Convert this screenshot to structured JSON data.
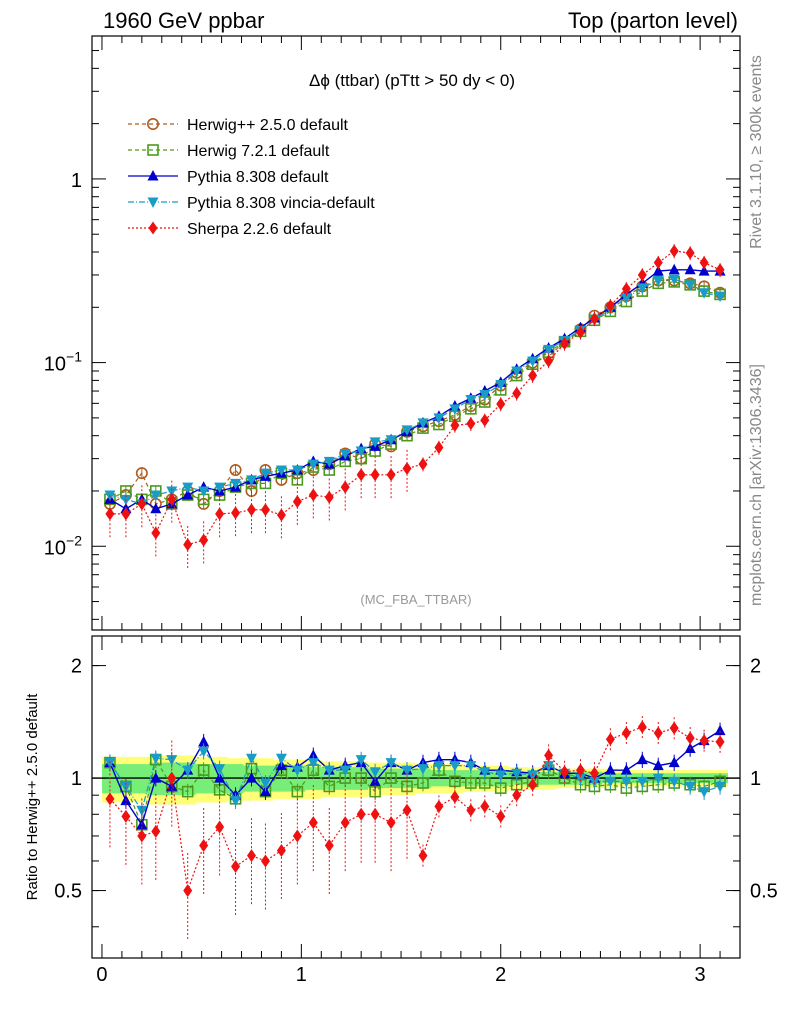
{
  "header": {
    "left": "1960 GeV ppbar",
    "right": "Top (parton level)"
  },
  "side_labels": {
    "rivet": "Rivet 3.1.10, ≥ 300k events",
    "mcplots": "mcplots.cern.ch [arXiv:1306.3436]"
  },
  "colors": {
    "herwigpp": "#b05a1e",
    "herwig7": "#4c9a1d",
    "pythia": "#0000cc",
    "vincia": "#1a9cc8",
    "sherpa": "#ee1111",
    "band_outer": "#ffff77",
    "band_inner": "#77ee77"
  },
  "chart_data": [
    {
      "type": "line",
      "title": "Δϕ (ttbar) (pTtt > 50 dy < 0)",
      "watermark": "(MC_FBA_TTBAR)",
      "xlabel": "",
      "ylabel": "",
      "xlim": [
        -0.05,
        3.2
      ],
      "ylim": [
        0.0035,
        6.0
      ],
      "yscale": "log",
      "ytick_labels": [
        {
          "value": 1,
          "label": "1",
          "exp": ""
        },
        {
          "value": 0.1,
          "label": "10",
          "exp": "−1"
        },
        {
          "value": 0.01,
          "label": "10",
          "exp": "−2"
        }
      ],
      "legend_position": "top-left",
      "x": [
        0.04,
        0.12,
        0.2,
        0.27,
        0.35,
        0.43,
        0.51,
        0.59,
        0.67,
        0.75,
        0.82,
        0.9,
        0.98,
        1.06,
        1.14,
        1.22,
        1.3,
        1.37,
        1.45,
        1.53,
        1.61,
        1.69,
        1.77,
        1.85,
        1.92,
        2.0,
        2.08,
        2.16,
        2.24,
        2.32,
        2.4,
        2.47,
        2.55,
        2.63,
        2.71,
        2.79,
        2.87,
        2.95,
        3.02,
        3.1
      ],
      "series": [
        {
          "name": "Herwig++ 2.5.0 default",
          "key": "herwigpp",
          "marker": "circle-open",
          "dash": "4,3",
          "values": [
            0.017,
            0.019,
            0.025,
            0.017,
            0.018,
            0.02,
            0.017,
            0.02,
            0.026,
            0.02,
            0.026,
            0.023,
            0.025,
            0.026,
            0.028,
            0.032,
            0.03,
            0.036,
            0.035,
            0.042,
            0.045,
            0.048,
            0.052,
            0.058,
            0.063,
            0.075,
            0.088,
            0.1,
            0.108,
            0.13,
            0.152,
            0.18,
            0.2,
            0.23,
            0.26,
            0.28,
            0.28,
            0.27,
            0.26,
            0.24
          ]
        },
        {
          "name": "Herwig 7.2.1 default",
          "key": "herwig7",
          "marker": "square-open",
          "dash": "4,3",
          "values": [
            0.018,
            0.02,
            0.018,
            0.02,
            0.017,
            0.019,
            0.018,
            0.019,
            0.021,
            0.022,
            0.022,
            0.025,
            0.023,
            0.027,
            0.026,
            0.029,
            0.03,
            0.033,
            0.036,
            0.04,
            0.044,
            0.046,
            0.051,
            0.056,
            0.061,
            0.071,
            0.085,
            0.098,
            0.114,
            0.13,
            0.148,
            0.17,
            0.19,
            0.215,
            0.245,
            0.27,
            0.275,
            0.265,
            0.245,
            0.235
          ]
        },
        {
          "name": "Pythia 8.308 default",
          "key": "pythia",
          "marker": "triangle-up",
          "dash": "",
          "values": [
            0.018,
            0.016,
            0.018,
            0.016,
            0.017,
            0.019,
            0.021,
            0.02,
            0.021,
            0.023,
            0.024,
            0.025,
            0.026,
            0.029,
            0.028,
            0.031,
            0.034,
            0.035,
            0.038,
            0.042,
            0.047,
            0.051,
            0.058,
            0.064,
            0.07,
            0.078,
            0.092,
            0.105,
            0.12,
            0.135,
            0.155,
            0.175,
            0.2,
            0.235,
            0.27,
            0.315,
            0.32,
            0.32,
            0.315,
            0.315
          ]
        },
        {
          "name": "Pythia 8.308 vincia-default",
          "key": "vincia",
          "marker": "triangle-down",
          "dash": "6,2,1,2",
          "values": [
            0.019,
            0.018,
            0.017,
            0.019,
            0.02,
            0.021,
            0.02,
            0.021,
            0.022,
            0.023,
            0.025,
            0.026,
            0.026,
            0.028,
            0.029,
            0.032,
            0.033,
            0.037,
            0.038,
            0.043,
            0.047,
            0.05,
            0.056,
            0.063,
            0.067,
            0.076,
            0.09,
            0.102,
            0.118,
            0.132,
            0.15,
            0.172,
            0.195,
            0.225,
            0.255,
            0.28,
            0.285,
            0.265,
            0.24,
            0.23
          ]
        },
        {
          "name": "Sherpa 2.2.6 default",
          "key": "sherpa",
          "marker": "diamond",
          "dash": "2,2",
          "values": [
            0.015,
            0.015,
            0.017,
            0.0118,
            0.018,
            0.0102,
            0.0108,
            0.015,
            0.0152,
            0.0158,
            0.0158,
            0.0148,
            0.0175,
            0.019,
            0.0185,
            0.021,
            0.0245,
            0.0245,
            0.0245,
            0.0265,
            0.028,
            0.0345,
            0.0455,
            0.0465,
            0.0485,
            0.0595,
            0.068,
            0.085,
            0.102,
            0.127,
            0.146,
            0.173,
            0.204,
            0.252,
            0.3,
            0.35,
            0.405,
            0.395,
            0.35,
            0.32
          ]
        }
      ]
    },
    {
      "type": "line",
      "xlabel": "",
      "ylabel": "Ratio to Herwig++ 2.5.0 default",
      "xlim": [
        -0.05,
        3.2
      ],
      "ylim": [
        0.33,
        2.4
      ],
      "yscale": "log",
      "ytick_labels": [
        {
          "value": 2,
          "label": "2"
        },
        {
          "value": 1,
          "label": "1"
        },
        {
          "value": 0.5,
          "label": "0.5"
        }
      ],
      "xtick_labels": [
        {
          "value": 0,
          "label": "0"
        },
        {
          "value": 1,
          "label": "1"
        },
        {
          "value": 2,
          "label": "2"
        },
        {
          "value": 3,
          "label": "3"
        }
      ],
      "reference_value": 1.0,
      "x": [
        0.04,
        0.12,
        0.2,
        0.27,
        0.35,
        0.43,
        0.51,
        0.59,
        0.67,
        0.75,
        0.82,
        0.9,
        0.98,
        1.06,
        1.14,
        1.22,
        1.3,
        1.37,
        1.45,
        1.53,
        1.61,
        1.69,
        1.77,
        1.85,
        1.92,
        2.0,
        2.08,
        2.16,
        2.24,
        2.32,
        2.4,
        2.47,
        2.55,
        2.63,
        2.71,
        2.79,
        2.87,
        2.95,
        3.02,
        3.1
      ],
      "band_outer": [
        0.14,
        0.14,
        0.14,
        0.15,
        0.15,
        0.15,
        0.14,
        0.14,
        0.13,
        0.13,
        0.13,
        0.12,
        0.12,
        0.12,
        0.11,
        0.11,
        0.11,
        0.1,
        0.1,
        0.1,
        0.09,
        0.09,
        0.09,
        0.08,
        0.08,
        0.08,
        0.07,
        0.07,
        0.07,
        0.06,
        0.06,
        0.06,
        0.06,
        0.05,
        0.05,
        0.05,
        0.05,
        0.05,
        0.05,
        0.05
      ],
      "band_inner": [
        0.09,
        0.09,
        0.09,
        0.1,
        0.1,
        0.1,
        0.09,
        0.09,
        0.09,
        0.08,
        0.08,
        0.08,
        0.08,
        0.07,
        0.07,
        0.07,
        0.07,
        0.06,
        0.06,
        0.06,
        0.06,
        0.05,
        0.05,
        0.05,
        0.05,
        0.05,
        0.04,
        0.04,
        0.04,
        0.04,
        0.04,
        0.04,
        0.03,
        0.03,
        0.03,
        0.03,
        0.03,
        0.03,
        0.03,
        0.03
      ],
      "series": [
        {
          "name": "Herwig 7.2.1 default",
          "key": "herwig7",
          "marker": "square-open",
          "dash": "4,3",
          "values": [
            1.1,
            0.95,
            0.75,
            1.12,
            0.95,
            0.92,
            1.05,
            0.93,
            0.88,
            1.06,
            0.92,
            1.05,
            0.92,
            1.05,
            0.95,
            1.0,
            1.0,
            0.92,
            1.0,
            0.95,
            0.97,
            1.05,
            0.98,
            0.97,
            0.97,
            0.94,
            0.96,
            0.98,
            1.05,
            1.0,
            0.96,
            0.95,
            0.96,
            0.94,
            0.95,
            0.96,
            0.97,
            0.96,
            0.95,
            0.98
          ]
        },
        {
          "name": "Pythia 8.308 default",
          "key": "pythia",
          "marker": "triangle-up",
          "dash": "",
          "values": [
            1.1,
            0.87,
            0.75,
            1.0,
            0.95,
            1.05,
            1.25,
            1.0,
            0.9,
            1.0,
            0.92,
            1.08,
            1.07,
            1.15,
            1.05,
            1.08,
            1.1,
            0.98,
            1.1,
            1.05,
            1.1,
            1.12,
            1.12,
            1.1,
            1.05,
            1.05,
            1.04,
            1.03,
            1.08,
            1.03,
            1.03,
            1.0,
            1.05,
            1.05,
            1.12,
            1.08,
            1.1,
            1.2,
            1.26,
            1.34
          ]
        },
        {
          "name": "Pythia 8.308 vincia-default",
          "key": "vincia",
          "marker": "triangle-down",
          "dash": "6,2,1,2",
          "values": [
            1.1,
            0.95,
            0.82,
            1.13,
            1.12,
            1.05,
            1.18,
            1.06,
            0.87,
            1.13,
            0.97,
            1.13,
            1.05,
            1.1,
            1.05,
            1.05,
            1.12,
            1.04,
            1.1,
            1.05,
            1.06,
            1.08,
            1.08,
            1.08,
            1.04,
            1.02,
            1.03,
            1.02,
            1.08,
            1.03,
            1.0,
            0.98,
            0.98,
            0.98,
            0.98,
            1.0,
            0.98,
            0.95,
            0.92,
            0.95
          ]
        },
        {
          "name": "Sherpa 2.2.6 default",
          "key": "sherpa",
          "marker": "diamond",
          "dash": "2,2",
          "values": [
            0.88,
            0.79,
            0.7,
            0.72,
            1.0,
            0.5,
            0.66,
            0.74,
            0.58,
            0.62,
            0.6,
            0.64,
            0.7,
            0.76,
            0.66,
            0.76,
            0.8,
            0.8,
            0.76,
            0.82,
            0.62,
            0.84,
            0.89,
            0.82,
            0.84,
            0.79,
            0.9,
            0.96,
            1.15,
            1.04,
            1.05,
            1.03,
            1.27,
            1.32,
            1.37,
            1.32,
            1.36,
            1.28,
            1.26,
            1.25
          ]
        }
      ]
    }
  ]
}
